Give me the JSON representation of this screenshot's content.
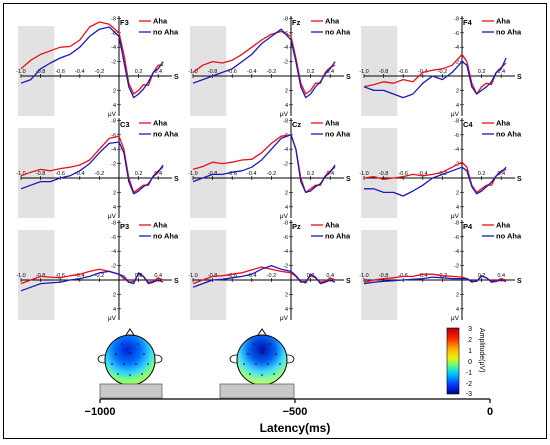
{
  "chart_data": [
    {
      "type": "line",
      "electrode": "F3",
      "x": [
        -1.0,
        -0.9,
        -0.8,
        -0.7,
        -0.6,
        -0.5,
        -0.4,
        -0.3,
        -0.2,
        -0.1,
        0.0,
        0.05,
        0.1,
        0.15,
        0.2,
        0.25,
        0.3,
        0.35,
        0.4,
        0.45
      ],
      "series": [
        {
          "name": "Aha",
          "values": [
            -1,
            -2.2,
            -3,
            -3.5,
            -4,
            -4.1,
            -5,
            -6.8,
            -7.5,
            -7.2,
            -6,
            -3,
            1,
            2.5,
            2,
            1.2,
            1.3,
            -0.5,
            -1.5,
            -1.5
          ]
        },
        {
          "name": "no Aha",
          "values": [
            1,
            0.5,
            -1,
            -1.8,
            -2.5,
            -3,
            -4,
            -5.5,
            -6.5,
            -6.8,
            -5.5,
            -2,
            1.5,
            3,
            2.5,
            1.8,
            0.8,
            -0.5,
            -1,
            -2
          ]
        }
      ]
    },
    {
      "type": "line",
      "electrode": "Fz",
      "x": [
        -1.0,
        -0.9,
        -0.8,
        -0.7,
        -0.6,
        -0.5,
        -0.4,
        -0.3,
        -0.2,
        -0.1,
        0.0,
        0.05,
        0.1,
        0.15,
        0.2,
        0.25,
        0.3,
        0.35,
        0.4,
        0.45
      ],
      "series": [
        {
          "name": "Aha",
          "values": [
            -0.5,
            -1.5,
            -2,
            -1.8,
            -2.2,
            -3,
            -4,
            -5,
            -5.8,
            -6.2,
            -5.5,
            -2.5,
            1,
            2.5,
            2,
            1,
            1,
            -0.5,
            -1.2,
            -1.5
          ]
        },
        {
          "name": "no Aha",
          "values": [
            1,
            0.5,
            0,
            -0.5,
            -1,
            -2,
            -3,
            -4.5,
            -5.5,
            -6.5,
            -5,
            -2,
            1.5,
            3,
            2.5,
            1.5,
            0.8,
            -0.3,
            -1,
            -2
          ]
        }
      ]
    },
    {
      "type": "line",
      "electrode": "F4",
      "x": [
        -1.0,
        -0.9,
        -0.8,
        -0.7,
        -0.6,
        -0.5,
        -0.4,
        -0.3,
        -0.2,
        -0.1,
        0.0,
        0.05,
        0.1,
        0.15,
        0.2,
        0.25,
        0.3,
        0.35,
        0.4,
        0.45
      ],
      "series": [
        {
          "name": "Aha",
          "values": [
            1.5,
            1.2,
            0.8,
            1,
            0.5,
            0.8,
            -0.5,
            -0.8,
            -1,
            -1.5,
            -3,
            -2,
            1,
            2.5,
            1.5,
            1,
            1.2,
            -0.5,
            -1.2,
            -1.8
          ]
        },
        {
          "name": "no Aha",
          "values": [
            1.5,
            2,
            2,
            2.5,
            3,
            2.5,
            1,
            0,
            0.5,
            -0.5,
            -2,
            -1.5,
            1.5,
            2.5,
            2,
            1.5,
            0.8,
            -0.5,
            -1,
            -2.5
          ]
        }
      ]
    },
    {
      "type": "line",
      "electrode": "C3",
      "x": [
        -1.0,
        -0.9,
        -0.8,
        -0.7,
        -0.6,
        -0.5,
        -0.4,
        -0.3,
        -0.2,
        -0.1,
        0.0,
        0.05,
        0.1,
        0.15,
        0.2,
        0.25,
        0.3,
        0.35,
        0.4,
        0.45
      ],
      "series": [
        {
          "name": "Aha",
          "values": [
            -0.3,
            -0.8,
            -1.2,
            -1,
            -1.3,
            -1.5,
            -1.8,
            -2.5,
            -4,
            -5.5,
            -5.8,
            -4,
            0,
            2,
            1.5,
            1,
            1,
            -0.3,
            -1,
            -1.5
          ]
        },
        {
          "name": "no Aha",
          "values": [
            1.5,
            1,
            0.5,
            0.5,
            0,
            -0.3,
            -1,
            -2,
            -3.5,
            -4.8,
            -5,
            -3.5,
            0.5,
            2.2,
            1.8,
            1.2,
            0.8,
            -0.2,
            -0.8,
            -1.8
          ]
        }
      ]
    },
    {
      "type": "line",
      "electrode": "Cz",
      "x": [
        -1.0,
        -0.9,
        -0.8,
        -0.7,
        -0.6,
        -0.5,
        -0.4,
        -0.3,
        -0.2,
        -0.1,
        0.0,
        0.05,
        0.1,
        0.15,
        0.2,
        0.25,
        0.3,
        0.35,
        0.4,
        0.45
      ],
      "series": [
        {
          "name": "Aha",
          "values": [
            -1.2,
            -1.6,
            -2.2,
            -2,
            -2.2,
            -2.5,
            -2.6,
            -3.5,
            -4.8,
            -5.8,
            -6,
            -4,
            0,
            2,
            1.5,
            1,
            1,
            -0.3,
            -1,
            -1.5
          ]
        },
        {
          "name": "no Aha",
          "values": [
            0.5,
            0,
            -0.5,
            -0.5,
            -0.8,
            -1,
            -1.5,
            -2.5,
            -4,
            -5.5,
            -6,
            -4,
            0.5,
            2,
            1.8,
            1.2,
            0.8,
            -0.2,
            -0.8,
            -1.8
          ]
        }
      ]
    },
    {
      "type": "line",
      "electrode": "C4",
      "x": [
        -1.0,
        -0.9,
        -0.8,
        -0.7,
        -0.6,
        -0.5,
        -0.4,
        -0.3,
        -0.2,
        -0.1,
        0.0,
        0.05,
        0.1,
        0.15,
        0.2,
        0.25,
        0.3,
        0.35,
        0.4,
        0.45
      ],
      "series": [
        {
          "name": "Aha",
          "values": [
            0,
            -0.2,
            0.2,
            0,
            -0.2,
            -0.5,
            -0.3,
            -0.5,
            -0.8,
            -1.5,
            -2.2,
            -1.5,
            1,
            2,
            1.5,
            1,
            1,
            -0.3,
            -1,
            -1.2
          ]
        },
        {
          "name": "no Aha",
          "values": [
            1.5,
            1.5,
            2,
            2,
            2.5,
            1.8,
            1,
            0,
            -0.5,
            -1,
            -1.5,
            -1,
            1.2,
            2.2,
            1.8,
            1.2,
            0.6,
            -0.3,
            -0.8,
            -1.5
          ]
        }
      ]
    },
    {
      "type": "line",
      "electrode": "P3",
      "x": [
        -1.0,
        -0.9,
        -0.8,
        -0.7,
        -0.6,
        -0.5,
        -0.4,
        -0.3,
        -0.2,
        -0.1,
        0.0,
        0.05,
        0.1,
        0.15,
        0.2,
        0.25,
        0.3,
        0.35,
        0.4,
        0.45
      ],
      "series": [
        {
          "name": "Aha",
          "values": [
            0.5,
            0,
            -0.5,
            -0.4,
            -0.3,
            -0.6,
            -0.8,
            -1.2,
            -1.5,
            -1.2,
            -0.8,
            -0.2,
            0.3,
            0.2,
            -0.8,
            -0.5,
            0.3,
            0.2,
            -0.3,
            0
          ]
        },
        {
          "name": "no Aha",
          "values": [
            1.5,
            1,
            0.5,
            0.4,
            0.3,
            0,
            -0.2,
            -0.5,
            -1,
            -1.2,
            -0.8,
            -0.5,
            0.3,
            0.5,
            -1,
            -0.5,
            0.5,
            0.3,
            0,
            0.3
          ]
        }
      ]
    },
    {
      "type": "line",
      "electrode": "Pz",
      "x": [
        -1.0,
        -0.9,
        -0.8,
        -0.7,
        -0.6,
        -0.5,
        -0.4,
        -0.3,
        -0.2,
        -0.1,
        0.0,
        0.05,
        0.1,
        0.15,
        0.2,
        0.25,
        0.3,
        0.35,
        0.4,
        0.45
      ],
      "series": [
        {
          "name": "Aha",
          "values": [
            0.5,
            0,
            -0.5,
            -0.6,
            -0.8,
            -1,
            -1.4,
            -1.8,
            -1.5,
            -1.2,
            -1,
            -0.5,
            0.3,
            0.2,
            -0.6,
            -0.3,
            0.3,
            0.2,
            -0.3,
            0
          ]
        },
        {
          "name": "no Aha",
          "values": [
            1,
            0.5,
            0,
            -0.1,
            -0.3,
            -0.5,
            -0.8,
            -1.5,
            -2,
            -1.5,
            -1.2,
            -0.6,
            0.2,
            0.4,
            -0.8,
            -0.4,
            0.5,
            0.3,
            0,
            0.3
          ]
        }
      ]
    },
    {
      "type": "line",
      "electrode": "P4",
      "x": [
        -1.0,
        -0.9,
        -0.8,
        -0.7,
        -0.6,
        -0.5,
        -0.4,
        -0.3,
        -0.2,
        -0.1,
        0.0,
        0.05,
        0.1,
        0.15,
        0.2,
        0.25,
        0.3,
        0.35,
        0.4,
        0.45
      ],
      "series": [
        {
          "name": "Aha",
          "values": [
            0.3,
            0,
            -0.2,
            -0.3,
            -0.5,
            -0.5,
            -0.8,
            -0.8,
            -0.6,
            -0.5,
            -0.4,
            -0.2,
            0.3,
            0.1,
            -0.5,
            -0.3,
            0.2,
            0.1,
            -0.2,
            0
          ]
        },
        {
          "name": "no Aha",
          "values": [
            0.5,
            0.3,
            0.2,
            0.1,
            0,
            -0.1,
            -0.2,
            -0.4,
            -0.3,
            -0.2,
            -0.2,
            -0.2,
            0.2,
            0.2,
            -0.6,
            -0.3,
            0.3,
            0.2,
            0,
            0.2
          ]
        }
      ]
    }
  ],
  "axis": {
    "x_ticks": [
      "-1.0",
      "-0.8",
      "-0.6",
      "-0.4",
      "-0.2",
      "0.2",
      "0.4"
    ],
    "x_unit": "S",
    "y_ticks": [
      "-8",
      "-6",
      "-4",
      "-2",
      "2",
      "4"
    ],
    "y_unit": "μV",
    "xlim": [
      -1.0,
      0.5
    ],
    "ylim": [
      -8,
      5
    ],
    "shaded_window": [
      -1.0,
      -0.66
    ]
  },
  "legend": {
    "aha_label": "Aha",
    "noaha_label": "no Aha",
    "aha_color": "#e8101a",
    "noaha_color": "#1a1ab8"
  },
  "colorbar": {
    "label": "Amplitude(μV)",
    "ticks": [
      "3",
      "2",
      "1",
      "0",
      "-1",
      "-2",
      "-3"
    ]
  },
  "latency_axis": {
    "title": "Latency(ms)",
    "ticks": [
      "−1000",
      "−500",
      "0"
    ]
  },
  "colors": {
    "shade": "#e2e2e2"
  }
}
